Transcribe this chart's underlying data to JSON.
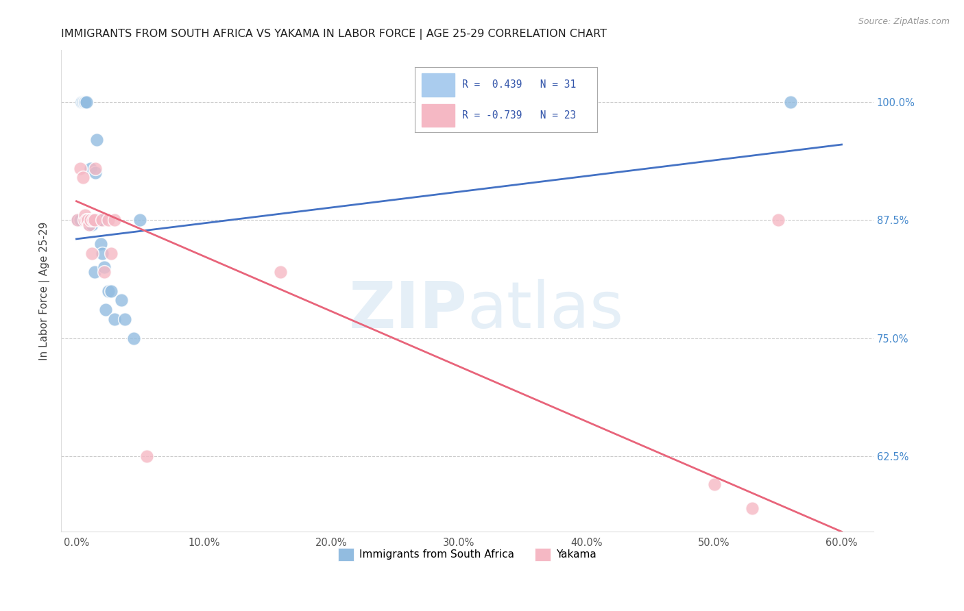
{
  "title": "IMMIGRANTS FROM SOUTH AFRICA VS YAKAMA IN LABOR FORCE | AGE 25-29 CORRELATION CHART",
  "source": "Source: ZipAtlas.com",
  "xlabel_ticks": [
    "0.0%",
    "10.0%",
    "20.0%",
    "30.0%",
    "40.0%",
    "50.0%",
    "60.0%"
  ],
  "xlabel_vals": [
    0.0,
    0.1,
    0.2,
    0.3,
    0.4,
    0.5,
    0.6
  ],
  "ylabel_ticks": [
    "62.5%",
    "75.0%",
    "87.5%",
    "100.0%"
  ],
  "ylabel_vals": [
    0.625,
    0.75,
    0.875,
    1.0
  ],
  "ylim": [
    0.545,
    1.055
  ],
  "xlim": [
    -0.012,
    0.625
  ],
  "ylabel": "In Labor Force | Age 25-29",
  "blue_label": "Immigrants from South Africa",
  "pink_label": "Yakama",
  "R_blue": 0.439,
  "N_blue": 31,
  "R_pink": -0.739,
  "N_pink": 23,
  "blue_color": "#92bce0",
  "pink_color": "#f5b8c4",
  "blue_line_color": "#4472c4",
  "pink_line_color": "#e8647a",
  "watermark_zip": "ZIP",
  "watermark_atlas": "atlas",
  "blue_scatter_x": [
    0.001,
    0.003,
    0.004,
    0.005,
    0.006,
    0.007,
    0.008,
    0.009,
    0.01,
    0.01,
    0.011,
    0.011,
    0.012,
    0.013,
    0.014,
    0.015,
    0.016,
    0.017,
    0.018,
    0.019,
    0.02,
    0.022,
    0.023,
    0.025,
    0.027,
    0.03,
    0.035,
    0.038,
    0.045,
    0.05,
    0.56
  ],
  "blue_scatter_y": [
    0.875,
    0.875,
    1.0,
    1.0,
    1.0,
    1.0,
    1.0,
    0.875,
    0.87,
    0.875,
    0.93,
    0.875,
    0.87,
    0.875,
    0.82,
    0.925,
    0.96,
    0.875,
    0.875,
    0.85,
    0.84,
    0.825,
    0.78,
    0.8,
    0.8,
    0.77,
    0.79,
    0.77,
    0.75,
    0.875,
    1.0
  ],
  "pink_scatter_x": [
    0.001,
    0.003,
    0.005,
    0.006,
    0.007,
    0.008,
    0.009,
    0.01,
    0.011,
    0.012,
    0.013,
    0.014,
    0.015,
    0.02,
    0.022,
    0.025,
    0.027,
    0.03,
    0.055,
    0.16,
    0.5,
    0.53,
    0.55
  ],
  "pink_scatter_y": [
    0.875,
    0.93,
    0.92,
    0.875,
    0.88,
    0.875,
    0.875,
    0.87,
    0.875,
    0.84,
    0.875,
    0.875,
    0.93,
    0.875,
    0.82,
    0.875,
    0.84,
    0.875,
    0.625,
    0.82,
    0.595,
    0.57,
    0.875
  ],
  "blue_line_x": [
    0.0,
    0.6
  ],
  "blue_line_y": [
    0.855,
    0.955
  ],
  "pink_line_x": [
    0.0,
    0.6
  ],
  "pink_line_y": [
    0.895,
    0.545
  ]
}
